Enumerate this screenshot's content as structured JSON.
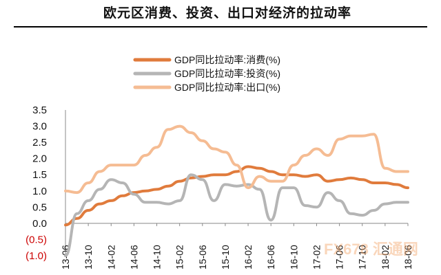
{
  "title": "欧元区消费、投资、出口对经济的拉动率",
  "chart_data": {
    "type": "line",
    "title": "欧元区消费、投资、出口对经济的拉动率",
    "x": [
      "13-06",
      "13-08",
      "13-10",
      "13-12",
      "14-02",
      "14-04",
      "14-06",
      "14-08",
      "14-10",
      "14-12",
      "15-02",
      "15-04",
      "15-06",
      "15-08",
      "15-10",
      "15-12",
      "16-02",
      "16-04",
      "16-06",
      "16-08",
      "16-10",
      "16-12",
      "17-02",
      "17-04",
      "17-06",
      "17-08",
      "17-10",
      "17-12",
      "18-02",
      "18-04",
      "18-06"
    ],
    "x_tick_labels": [
      "13-06",
      "13-10",
      "14-02",
      "14-06",
      "14-10",
      "15-02",
      "15-06",
      "15-10",
      "16-02",
      "16-06",
      "16-10",
      "17-02",
      "17-06",
      "17-10",
      "18-02",
      "18-06"
    ],
    "y_tick_labels": [
      "3.5",
      "3.0",
      "2.5",
      "2.0",
      "1.5",
      "1.0",
      "0.5",
      "0.0",
      "(0.5)",
      "(1.0)"
    ],
    "ylim": [
      -1.0,
      3.5
    ],
    "y_ticks": [
      3.5,
      3.0,
      2.5,
      2.0,
      1.5,
      1.0,
      0.5,
      0.0,
      -0.5,
      -1.0
    ],
    "grid": false,
    "legend_position": "top-center",
    "series": [
      {
        "name": "GDP同比拉动率:消费(%)",
        "color": "#e07b3c",
        "values": [
          -0.05,
          0.15,
          0.4,
          0.6,
          0.7,
          0.85,
          0.95,
          1.0,
          1.05,
          1.15,
          1.3,
          1.4,
          1.45,
          1.5,
          1.5,
          1.6,
          1.75,
          1.7,
          1.6,
          1.5,
          1.5,
          1.45,
          1.5,
          1.3,
          1.35,
          1.4,
          1.35,
          1.25,
          1.25,
          1.2,
          1.1
        ]
      },
      {
        "name": "GDP同比拉动率:投资(%)",
        "color": "#b5b5b5",
        "values": [
          -1.0,
          0.3,
          0.7,
          1.05,
          1.35,
          1.25,
          0.9,
          0.65,
          0.65,
          0.6,
          0.7,
          1.5,
          1.35,
          0.7,
          1.2,
          1.15,
          1.2,
          1.05,
          0.1,
          1.1,
          1.1,
          0.55,
          0.5,
          0.95,
          0.7,
          0.3,
          0.25,
          0.4,
          0.6,
          0.65,
          0.65
        ]
      },
      {
        "name": "GDP同比拉动率:出口(%)",
        "color": "#f5bc93",
        "values": [
          1.0,
          0.95,
          1.25,
          1.6,
          1.8,
          1.8,
          1.8,
          2.1,
          2.35,
          2.9,
          3.0,
          2.8,
          2.55,
          2.3,
          2.2,
          1.8,
          1.1,
          1.45,
          1.3,
          1.3,
          1.8,
          2.1,
          2.3,
          2.1,
          2.6,
          2.7,
          2.7,
          2.75,
          1.7,
          1.6,
          1.6
        ]
      }
    ],
    "negative_label_color": "#cc0000",
    "watermark": "FX678 汇通网"
  }
}
